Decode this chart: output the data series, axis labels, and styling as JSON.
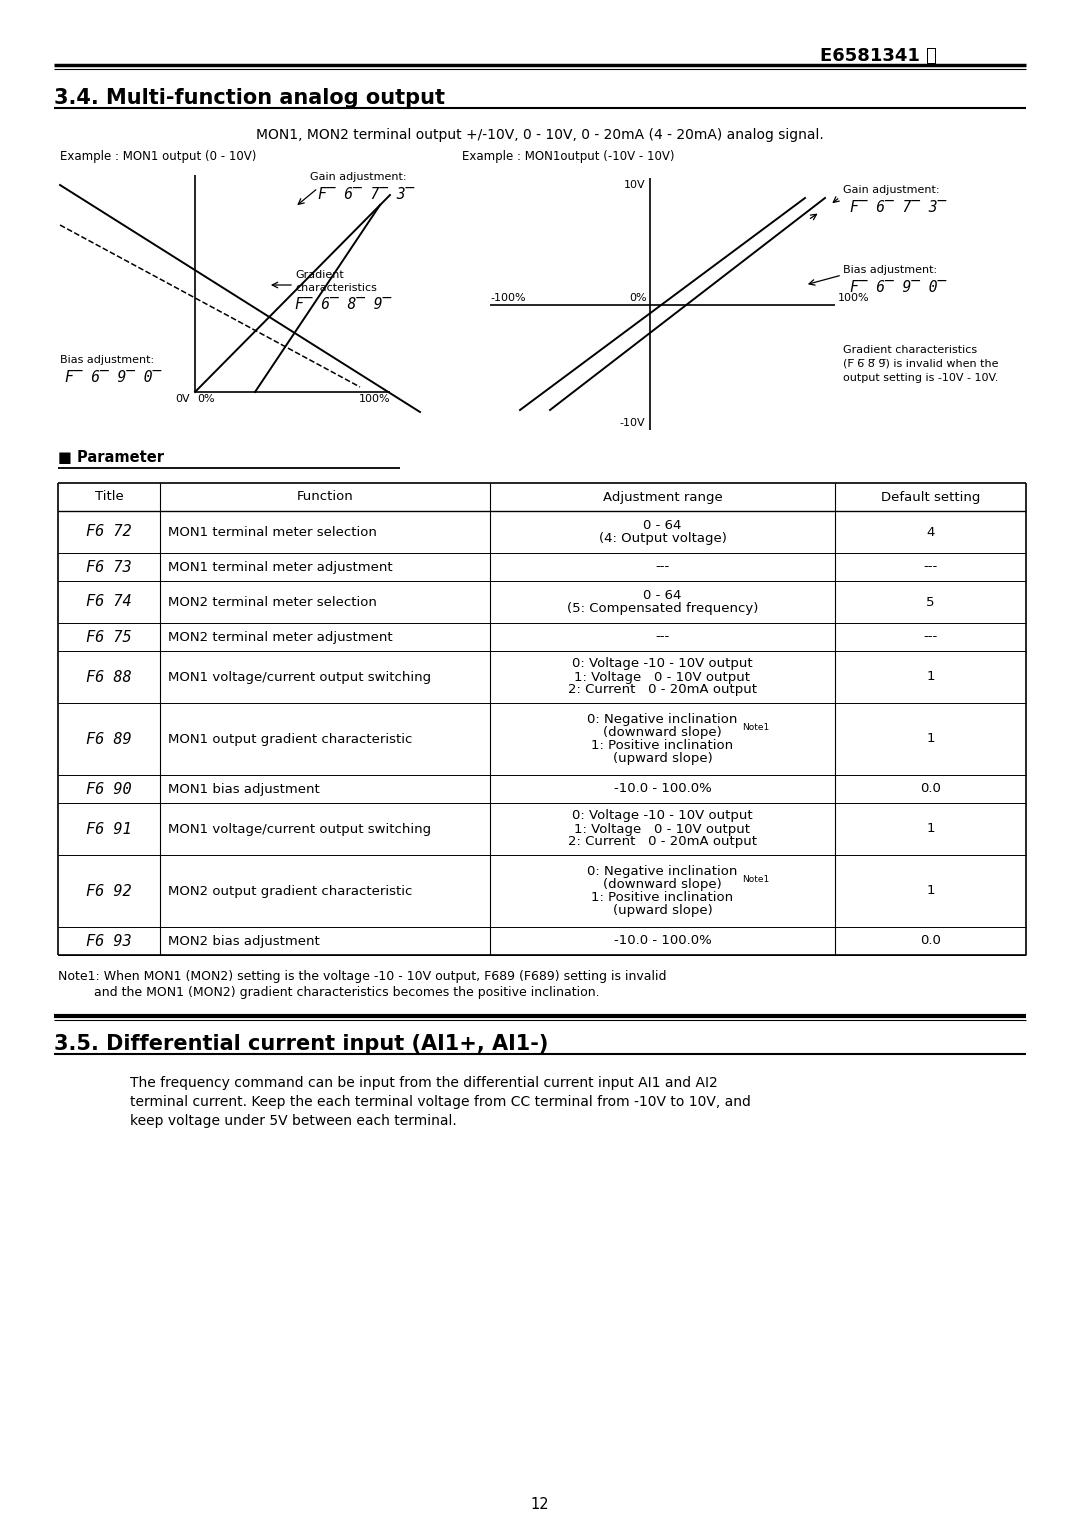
{
  "page_header": "E6581341 Ⓕ",
  "section_34_title": "3.4. Multi-function analog output",
  "section_34_subtitle": "MON1, MON2 terminal output +/-10V, 0 - 10V, 0 - 20mA (4 - 20mA) analog signal.",
  "example1_label": "Example : MON1 output (0 - 10V)",
  "example2_label": "Example : MON1output (-10V - 10V)",
  "param_header": "■ Parameter",
  "table_headers": [
    "Title",
    "Function",
    "Adjustment range",
    "Default setting"
  ],
  "table_rows": [
    [
      "F6 72",
      "MON1 terminal meter selection",
      "0 - 64\n(4: Output voltage)",
      "4"
    ],
    [
      "F6 73",
      "MON1 terminal meter adjustment",
      "---",
      "---"
    ],
    [
      "F6 74",
      "MON2 terminal meter selection",
      "0 - 64\n(5: Compensated frequency)",
      "5"
    ],
    [
      "F6 75",
      "MON2 terminal meter adjustment",
      "---",
      "---"
    ],
    [
      "F6 88",
      "MON1 voltage/current output switching",
      "0: Voltage -10 - 10V output\n1: Voltage   0 - 10V output\n2: Current   0 - 20mA output",
      "1"
    ],
    [
      "F6 89",
      "MON1 output gradient characteristic",
      "0: Negative inclination\n(downward slope)|Note1\n1: Positive inclination\n(upward slope)",
      "1"
    ],
    [
      "F6 90",
      "MON1 bias adjustment",
      "-10.0 - 100.0%",
      "0.0"
    ],
    [
      "F6 91",
      "MON1 voltage/current output switching",
      "0: Voltage -10 - 10V output\n1: Voltage   0 - 10V output\n2: Current   0 - 20mA output",
      "1"
    ],
    [
      "F6 92",
      "MON2 output gradient characteristic",
      "0: Negative inclination\n(downward slope)|Note1\n1: Positive inclination\n(upward slope)",
      "1"
    ],
    [
      "F6 93",
      "MON2 bias adjustment",
      "-10.0 - 100.0%",
      "0.0"
    ]
  ],
  "note1_line1": "Note1: When MON1 (MON2) setting is the voltage -10 - 10V output, F689 (F689) setting is invalid",
  "note1_line2": "         and the MON1 (MON2) gradient characteristics becomes the positive inclination.",
  "section_35_title": "3.5. Differential current input (AI1+, AI1-)",
  "section_35_lines": [
    "The frequency command can be input from the differential current input AI1 and AI2",
    "terminal current. Keep the each terminal voltage from CC terminal from -10V to 10V, and",
    "keep voltage under 5V between each terminal."
  ],
  "page_number": "12",
  "bg_color": "#ffffff"
}
